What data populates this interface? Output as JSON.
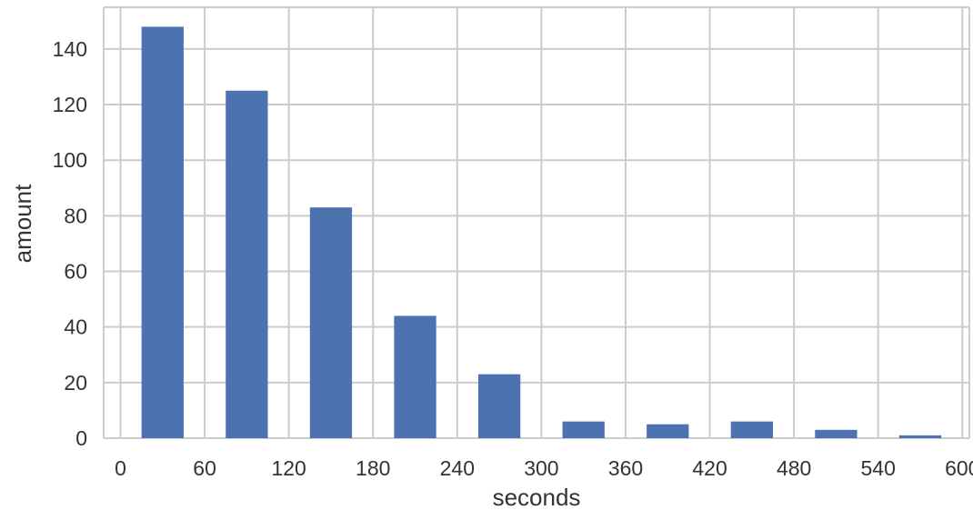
{
  "chart_data": {
    "type": "bar",
    "xlabel": "seconds",
    "ylabel": "amount",
    "xlim": [
      -12,
      605
    ],
    "ylim": [
      0,
      155
    ],
    "x_ticks": [
      0,
      60,
      120,
      180,
      240,
      300,
      360,
      420,
      480,
      540,
      600
    ],
    "y_ticks": [
      0,
      20,
      40,
      60,
      80,
      100,
      120,
      140
    ],
    "grid": true,
    "bar_color": "#4c72b0",
    "bars": [
      {
        "start": 15,
        "end": 45,
        "value": 148
      },
      {
        "start": 75,
        "end": 105,
        "value": 125
      },
      {
        "start": 135,
        "end": 165,
        "value": 83
      },
      {
        "start": 195,
        "end": 225,
        "value": 44
      },
      {
        "start": 255,
        "end": 285,
        "value": 23
      },
      {
        "start": 315,
        "end": 345,
        "value": 6
      },
      {
        "start": 375,
        "end": 405,
        "value": 5
      },
      {
        "start": 435,
        "end": 465,
        "value": 6
      },
      {
        "start": 495,
        "end": 525,
        "value": 3
      },
      {
        "start": 555,
        "end": 585,
        "value": 1
      }
    ]
  }
}
